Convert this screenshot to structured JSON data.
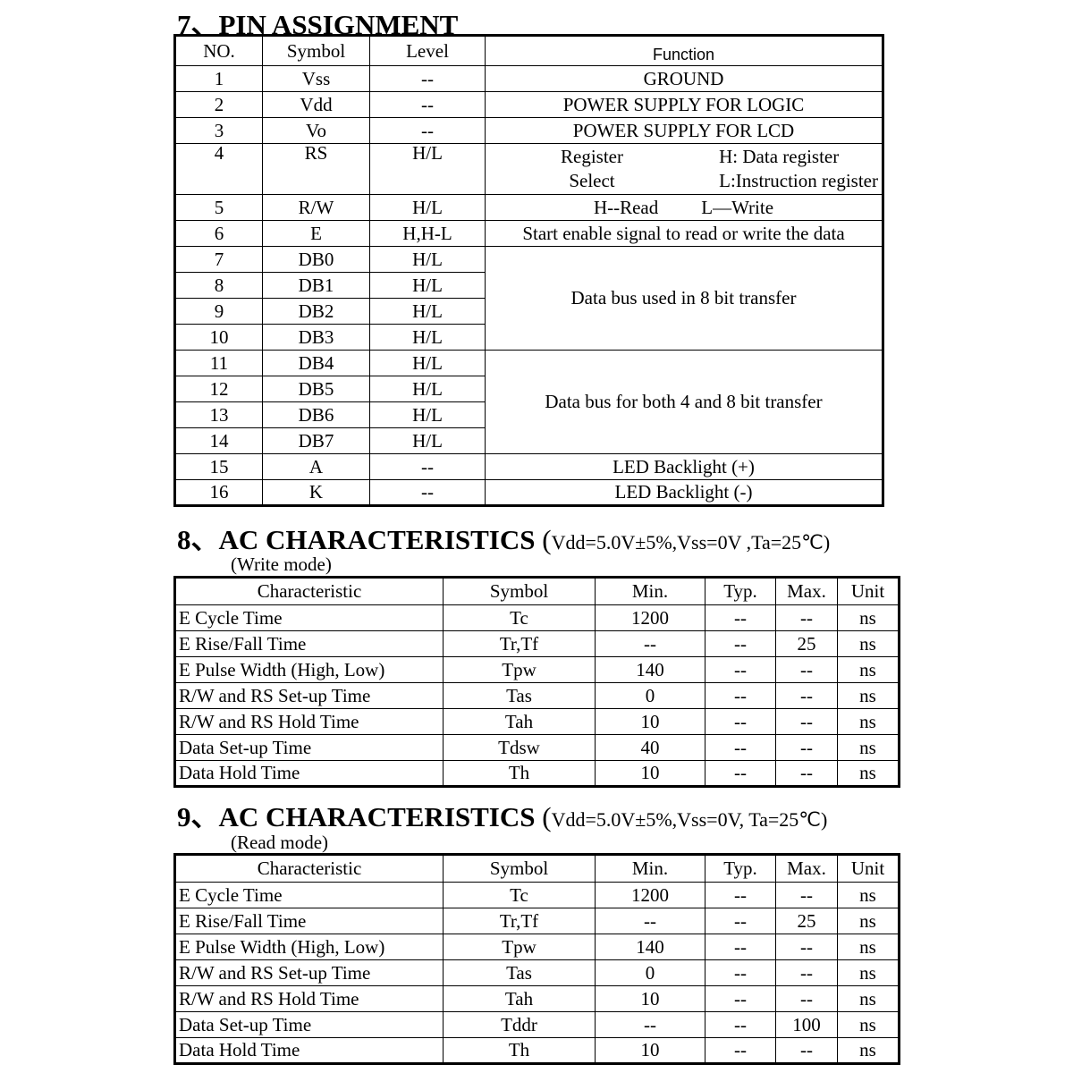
{
  "pin": {
    "title": "7、PIN ASSIGNMENT",
    "headers": [
      "NO.",
      "Symbol",
      "Level",
      "Function"
    ],
    "rows": [
      {
        "no": "1",
        "symbol": "Vss",
        "level": "--",
        "function": "GROUND"
      },
      {
        "no": "2",
        "symbol": "Vdd",
        "level": "--",
        "function": "POWER SUPPLY FOR LOGIC"
      },
      {
        "no": "3",
        "symbol": "Vo",
        "level": "--",
        "function": "POWER SUPPLY FOR LCD"
      },
      {
        "no": "4",
        "symbol": "RS",
        "level": "H/L",
        "function_split": [
          [
            "Register",
            "Select"
          ],
          [
            "H: Data register",
            "L:Instruction register"
          ]
        ]
      },
      {
        "no": "5",
        "symbol": "R/W",
        "level": "H/L",
        "function_pair": [
          "H--Read",
          "L—Write"
        ]
      },
      {
        "no": "6",
        "symbol": "E",
        "level": "H,H-L",
        "function": "Start enable signal to read or write the data"
      },
      {
        "no": "7",
        "symbol": "DB0",
        "level": "H/L",
        "function": "Data bus used in 8 bit transfer",
        "span": 4
      },
      {
        "no": "8",
        "symbol": "DB1",
        "level": "H/L"
      },
      {
        "no": "9",
        "symbol": "DB2",
        "level": "H/L"
      },
      {
        "no": "10",
        "symbol": "DB3",
        "level": "H/L"
      },
      {
        "no": "11",
        "symbol": "DB4",
        "level": "H/L",
        "function": "Data bus for both 4 and 8 bit transfer",
        "span": 4
      },
      {
        "no": "12",
        "symbol": "DB5",
        "level": "H/L"
      },
      {
        "no": "13",
        "symbol": "DB6",
        "level": "H/L"
      },
      {
        "no": "14",
        "symbol": "DB7",
        "level": "H/L"
      },
      {
        "no": "15",
        "symbol": "A",
        "level": "--",
        "function": "LED Backlight (+)"
      },
      {
        "no": "16",
        "symbol": "K",
        "level": "--",
        "function": "LED Backlight (-)"
      }
    ]
  },
  "write": {
    "title": "8、AC CHARACTERISTICS",
    "conditions": "Vdd=5.0V±5%,Vss=0V ,Ta=25℃",
    "mode": "(Write mode)",
    "headers": [
      "Characteristic",
      "Symbol",
      "Min.",
      "Typ.",
      "Max.",
      "Unit"
    ],
    "rows": [
      [
        "E Cycle Time",
        "Tc",
        "1200",
        "--",
        "--",
        "ns"
      ],
      [
        "E Rise/Fall Time",
        "Tr,Tf",
        "--",
        "--",
        "25",
        "ns"
      ],
      [
        "E Pulse Width (High, Low)",
        "Tpw",
        "140",
        "--",
        "--",
        "ns"
      ],
      [
        "R/W and RS Set-up Time",
        "Tas",
        "0",
        "--",
        "--",
        "ns"
      ],
      [
        "R/W and RS Hold Time",
        "Tah",
        "10",
        "--",
        "--",
        "ns"
      ],
      [
        "Data Set-up Time",
        "Tdsw",
        "40",
        "--",
        "--",
        "ns"
      ],
      [
        "Data Hold Time",
        "Th",
        "10",
        "--",
        "--",
        "ns"
      ]
    ]
  },
  "read": {
    "title": "9、AC CHARACTERISTICS",
    "conditions": "Vdd=5.0V±5%,Vss=0V, Ta=25℃",
    "mode": "(Read mode)",
    "headers": [
      "Characteristic",
      "Symbol",
      "Min.",
      "Typ.",
      "Max.",
      "Unit"
    ],
    "rows": [
      [
        "E Cycle Time",
        "Tc",
        "1200",
        "--",
        "--",
        "ns"
      ],
      [
        "E Rise/Fall Time",
        "Tr,Tf",
        "--",
        "--",
        "25",
        "ns"
      ],
      [
        "E Pulse Width (High, Low)",
        "Tpw",
        "140",
        "--",
        "--",
        "ns"
      ],
      [
        "R/W and RS Set-up Time",
        "Tas",
        "0",
        "--",
        "--",
        "ns"
      ],
      [
        "R/W and RS Hold Time",
        "Tah",
        "10",
        "--",
        "--",
        "ns"
      ],
      [
        "Data Set-up Time",
        "Tddr",
        "--",
        "--",
        "100",
        "ns"
      ],
      [
        "Data Hold Time",
        "Th",
        "10",
        "--",
        "--",
        "ns"
      ]
    ]
  }
}
